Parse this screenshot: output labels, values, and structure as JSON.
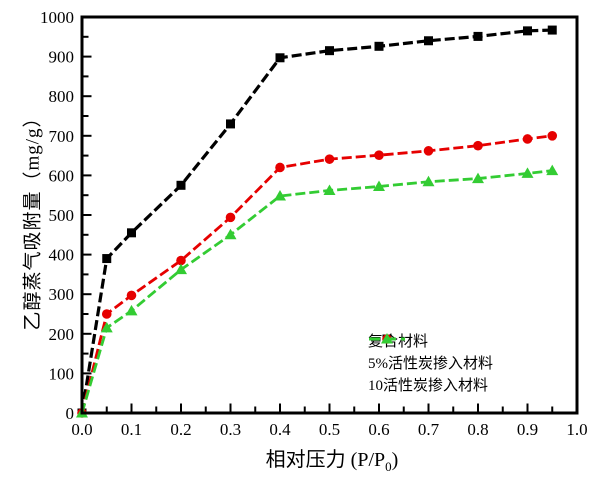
{
  "figure": {
    "background": "#ffffff",
    "axis_color": "#000000"
  },
  "chart_data": {
    "type": "line",
    "x": [
      0,
      0.05,
      0.1,
      0.2,
      0.3,
      0.4,
      0.5,
      0.6,
      0.7,
      0.8,
      0.9,
      0.95
    ],
    "series": [
      {
        "name": "复合材料",
        "color": "#000000",
        "marker": "square",
        "values": [
          0,
          390,
          455,
          575,
          730,
          897,
          915,
          926,
          940,
          951,
          965,
          967
        ]
      },
      {
        "name": "5%活性炭掺入材料",
        "color": "#e60000",
        "marker": "circle",
        "values": [
          0,
          250,
          297,
          385,
          494,
          620,
          641,
          651,
          662,
          675,
          692,
          700
        ]
      },
      {
        "name": "10活性炭掺入材料",
        "color": "#33cc33",
        "marker": "triangle-up",
        "values": [
          0,
          215,
          258,
          362,
          450,
          548,
          562,
          572,
          584,
          592,
          605,
          612
        ]
      }
    ],
    "title": "",
    "xlabel": "相对压力 (P/P0)",
    "xlabel_prefix": "相对压力 (P/P",
    "xlabel_sub": "0",
    "xlabel_suffix": ")",
    "ylabel": "乙醇蒸气吸附量（mg/g）",
    "xlim": [
      0,
      1.0
    ],
    "ylim": [
      0,
      1000
    ],
    "x_ticks": {
      "major": [
        0,
        0.1,
        0.2,
        0.3,
        0.4,
        0.5,
        0.6,
        0.7,
        0.8,
        0.9,
        1.0
      ],
      "labels": [
        "0.0",
        "0.1",
        "0.2",
        "0.3",
        "0.4",
        "0.5",
        "0.6",
        "0.7",
        "0.8",
        "0.9",
        "1.0"
      ],
      "minor_step": 0.05
    },
    "y_ticks": {
      "major": [
        0,
        100,
        200,
        300,
        400,
        500,
        600,
        700,
        800,
        900,
        1000
      ],
      "labels": [
        "0",
        "100",
        "200",
        "300",
        "400",
        "500",
        "600",
        "700",
        "800",
        "900",
        "1000"
      ],
      "minor_step": 50
    },
    "grid": false,
    "line_style": "dashed",
    "legend_position": "inside-lower-right"
  }
}
